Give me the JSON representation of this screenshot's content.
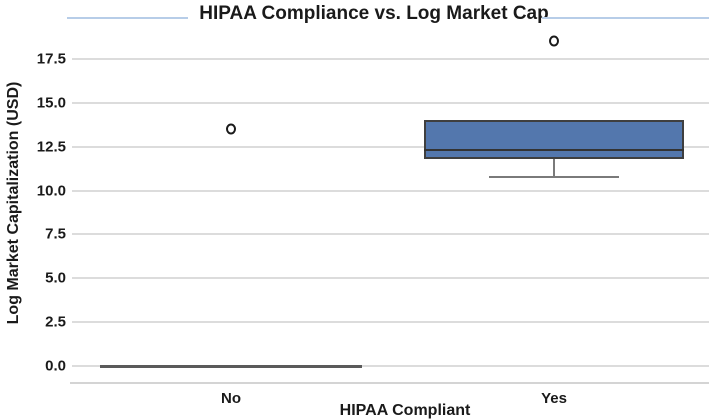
{
  "chart_data": {
    "type": "boxplot",
    "title": "HIPAA Compliance vs. Log Market Cap",
    "xlabel": "HIPAA Compliant",
    "ylabel": "Log Market Capitalization (USD)",
    "categories": [
      "No",
      "Yes"
    ],
    "yticks": [
      0.0,
      2.5,
      5.0,
      7.5,
      10.0,
      12.5,
      15.0,
      17.5
    ],
    "ytick_labels": [
      "0.0",
      "2.5",
      "5.0",
      "7.5",
      "10.0",
      "12.5",
      "15.0",
      "17.5"
    ],
    "ylim": [
      -1.0,
      19.8
    ],
    "grid": "horizontal",
    "legend": "none",
    "series": [
      {
        "category": "No",
        "q1": 0.0,
        "median": 0.0,
        "q3": 0.0,
        "whisker_low": 0.0,
        "whisker_high": 0.0,
        "outliers": [
          13.5
        ],
        "collapsed": true
      },
      {
        "category": "Yes",
        "q1": 11.8,
        "median": 12.3,
        "q3": 14.0,
        "whisker_low": 10.8,
        "whisker_high": 14.0,
        "outliers": [
          18.5
        ],
        "collapsed": false
      }
    ],
    "colors": {
      "box_fill": "#5377ad",
      "box_border": "#3f3f3f",
      "median": "#333333",
      "whisker": "#7a7a7a",
      "collapsed_line": "#5a5a5a",
      "gridline": "#dcdcdc",
      "top_border": "#b7cde8",
      "outlier_edge": "#1a1a1a",
      "text": "#1a1a1a",
      "background": "#ffffff"
    }
  }
}
